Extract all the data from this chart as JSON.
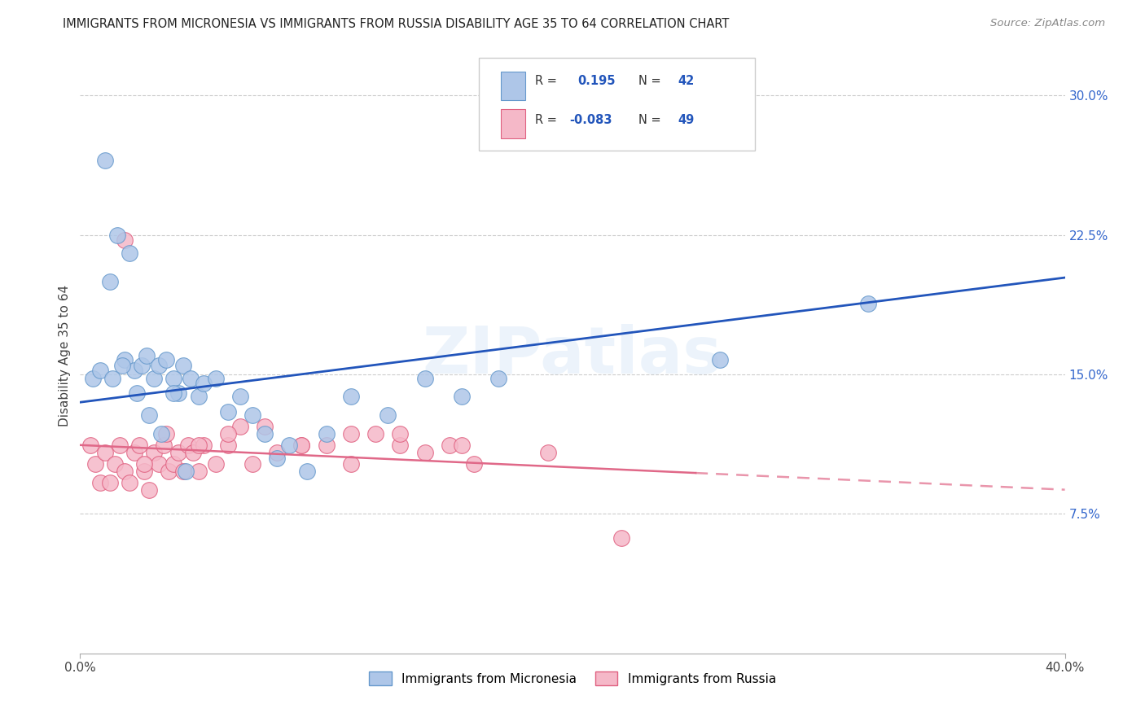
{
  "title": "IMMIGRANTS FROM MICRONESIA VS IMMIGRANTS FROM RUSSIA DISABILITY AGE 35 TO 64 CORRELATION CHART",
  "source": "Source: ZipAtlas.com",
  "ylabel": "Disability Age 35 to 64",
  "x_min": 0.0,
  "x_max": 0.4,
  "y_min": 0.0,
  "y_max": 0.32,
  "y_ticks": [
    0.075,
    0.15,
    0.225,
    0.3
  ],
  "y_tick_labels": [
    "7.5%",
    "15.0%",
    "22.5%",
    "30.0%"
  ],
  "micronesia_color": "#aec6e8",
  "russia_color": "#f5b8c8",
  "micronesia_edge": "#6699cc",
  "russia_edge": "#e06080",
  "trend_blue": "#2255bb",
  "trend_pink": "#e06888",
  "R_micro": 0.195,
  "N_micro": 42,
  "R_russia": -0.083,
  "N_russia": 49,
  "micronesia_x": [
    0.005,
    0.01,
    0.012,
    0.015,
    0.018,
    0.02,
    0.022,
    0.025,
    0.027,
    0.03,
    0.032,
    0.035,
    0.038,
    0.04,
    0.042,
    0.045,
    0.048,
    0.05,
    0.055,
    0.06,
    0.065,
    0.07,
    0.075,
    0.08,
    0.085,
    0.092,
    0.1,
    0.11,
    0.125,
    0.14,
    0.155,
    0.17,
    0.008,
    0.013,
    0.017,
    0.023,
    0.028,
    0.033,
    0.038,
    0.043,
    0.26,
    0.32
  ],
  "micronesia_y": [
    0.148,
    0.265,
    0.2,
    0.225,
    0.158,
    0.215,
    0.152,
    0.155,
    0.16,
    0.148,
    0.155,
    0.158,
    0.148,
    0.14,
    0.155,
    0.148,
    0.138,
    0.145,
    0.148,
    0.13,
    0.138,
    0.128,
    0.118,
    0.105,
    0.112,
    0.098,
    0.118,
    0.138,
    0.128,
    0.148,
    0.138,
    0.148,
    0.152,
    0.148,
    0.155,
    0.14,
    0.128,
    0.118,
    0.14,
    0.098,
    0.158,
    0.188
  ],
  "russia_x": [
    0.004,
    0.006,
    0.008,
    0.01,
    0.012,
    0.014,
    0.016,
    0.018,
    0.02,
    0.022,
    0.024,
    0.026,
    0.028,
    0.03,
    0.032,
    0.034,
    0.036,
    0.038,
    0.04,
    0.042,
    0.044,
    0.046,
    0.048,
    0.05,
    0.055,
    0.06,
    0.065,
    0.07,
    0.08,
    0.09,
    0.1,
    0.11,
    0.12,
    0.13,
    0.14,
    0.15,
    0.16,
    0.018,
    0.026,
    0.035,
    0.048,
    0.06,
    0.075,
    0.09,
    0.11,
    0.13,
    0.155,
    0.19,
    0.22
  ],
  "russia_y": [
    0.112,
    0.102,
    0.092,
    0.108,
    0.092,
    0.102,
    0.112,
    0.098,
    0.092,
    0.108,
    0.112,
    0.098,
    0.088,
    0.108,
    0.102,
    0.112,
    0.098,
    0.102,
    0.108,
    0.098,
    0.112,
    0.108,
    0.098,
    0.112,
    0.102,
    0.112,
    0.122,
    0.102,
    0.108,
    0.112,
    0.112,
    0.102,
    0.118,
    0.112,
    0.108,
    0.112,
    0.102,
    0.222,
    0.102,
    0.118,
    0.112,
    0.118,
    0.122,
    0.112,
    0.118,
    0.118,
    0.112,
    0.108,
    0.062
  ],
  "trend_blue_x0": 0.0,
  "trend_blue_x1": 0.4,
  "trend_blue_y0": 0.135,
  "trend_blue_y1": 0.202,
  "trend_pink_x0": 0.0,
  "trend_pink_x1": 0.4,
  "trend_pink_y0": 0.112,
  "trend_pink_y1": 0.088,
  "trend_pink_solid_end": 0.25
}
